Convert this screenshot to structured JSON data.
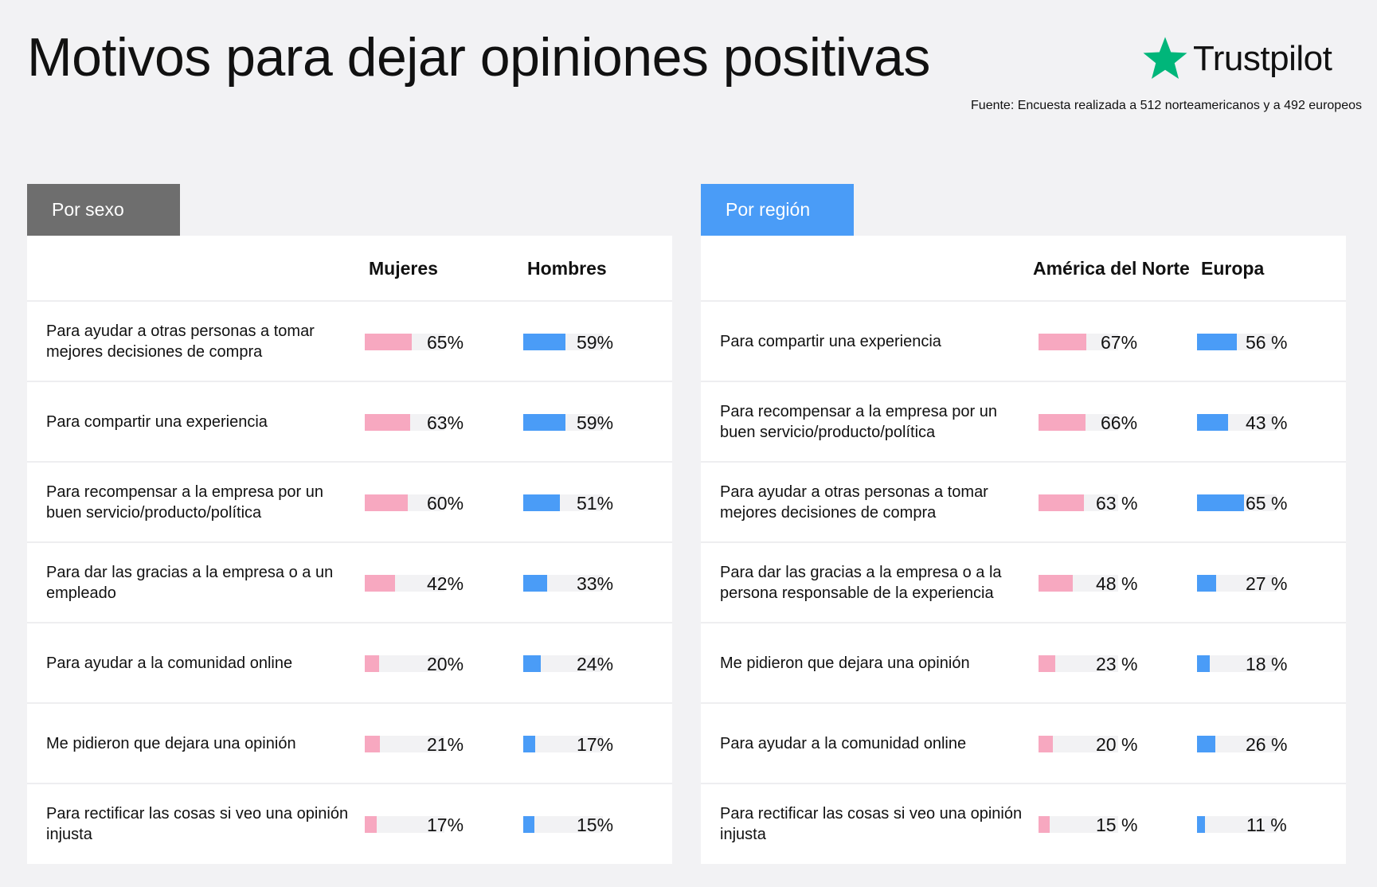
{
  "title": "Motivos para dejar opiniones positivas",
  "brand": {
    "name": "Trustpilot",
    "star_color": "#00b67a",
    "icon": "star-icon"
  },
  "source": "Fuente: Encuesta realizada a 512 norteamericanos y a 492 europeos",
  "colors": {
    "pink": "#f7a8c0",
    "blue": "#4a9cf7",
    "tab_gray": "#6e6e6e"
  },
  "chart_data": [
    {
      "type": "bar",
      "title": "Por sexo",
      "categories": [
        "Para ayudar a otras personas a tomar mejores decisiones de compra",
        "Para compartir una experiencia",
        "Para recompensar a la empresa por un buen servicio/producto/política",
        "Para dar las gracias a la empresa o a un empleado",
        "Para ayudar a la comunidad online",
        "Me pidieron que dejara una opinión",
        "Para rectificar las cosas si veo una opinión injusta"
      ],
      "series": [
        {
          "name": "Mujeres",
          "values": [
            65,
            63,
            60,
            42,
            20,
            21,
            17
          ],
          "labels": [
            "65%",
            "63%",
            "60%",
            "42%",
            "20%",
            "21%",
            "17%"
          ]
        },
        {
          "name": "Hombres",
          "values": [
            59,
            59,
            51,
            33,
            24,
            17,
            15
          ],
          "labels": [
            "59%",
            "59%",
            "51%",
            "33%",
            "24%",
            "17%",
            "15%"
          ]
        }
      ],
      "ylim": [
        0,
        100
      ]
    },
    {
      "type": "bar",
      "title": "Por región",
      "categories": [
        "Para compartir una experiencia",
        "Para recompensar a la empresa por un buen servicio/producto/política",
        "Para ayudar a otras personas a tomar mejores decisiones de compra",
        "Para dar las gracias a la empresa o a la persona responsable de la experiencia",
        "Me pidieron que dejara una opinión",
        "Para ayudar a la comunidad online",
        "Para rectificar las cosas si veo una opinión injusta"
      ],
      "series": [
        {
          "name": "América del Norte",
          "values": [
            67,
            66,
            63,
            48,
            23,
            20,
            15
          ],
          "labels": [
            "67%",
            "66%",
            "63 %",
            "48 %",
            "23 %",
            "20 %",
            "15 %"
          ]
        },
        {
          "name": "Europa",
          "values": [
            56,
            43,
            65,
            27,
            18,
            26,
            11
          ],
          "labels": [
            "56 %",
            "43 %",
            "65 %",
            "27 %",
            "18 %",
            "26 %",
            "11 %"
          ]
        }
      ],
      "ylim": [
        0,
        100
      ]
    }
  ]
}
